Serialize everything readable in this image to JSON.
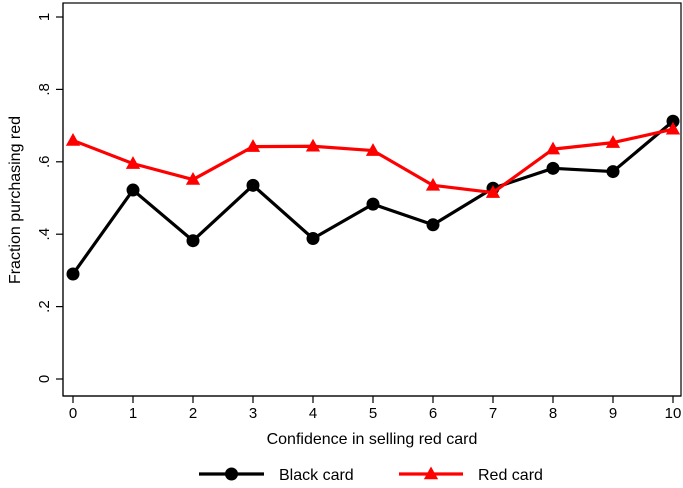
{
  "chart_data": {
    "type": "line",
    "title": "",
    "xlabel": "Confidence in selling red card",
    "ylabel": "Fraction purchasing red",
    "x": [
      0,
      1,
      2,
      3,
      4,
      5,
      6,
      7,
      8,
      9,
      10
    ],
    "xlim": [
      0,
      10
    ],
    "ylim": [
      0,
      1
    ],
    "x_ticks": [
      "0",
      "1",
      "2",
      "3",
      "4",
      "5",
      "6",
      "7",
      "8",
      "9",
      "10"
    ],
    "y_ticks": [
      {
        "value": 0,
        "label": "0"
      },
      {
        "value": 0.2,
        "label": ".2"
      },
      {
        "value": 0.4,
        "label": ".4"
      },
      {
        "value": 0.6,
        "label": ".6"
      },
      {
        "value": 0.8,
        "label": ".8"
      },
      {
        "value": 1,
        "label": "1"
      }
    ],
    "grid": false,
    "legend_position": "bottom",
    "series": [
      {
        "name": "Black card",
        "color": "#000000",
        "marker": "circle",
        "values": [
          0.29,
          0.522,
          0.382,
          0.535,
          0.388,
          0.483,
          0.426,
          0.527,
          0.582,
          0.573,
          0.712
        ]
      },
      {
        "name": "Red card",
        "color": "#ff0000",
        "marker": "triangle",
        "values": [
          0.659,
          0.595,
          0.551,
          0.642,
          0.643,
          0.631,
          0.535,
          0.515,
          0.635,
          0.653,
          0.69
        ]
      }
    ]
  }
}
